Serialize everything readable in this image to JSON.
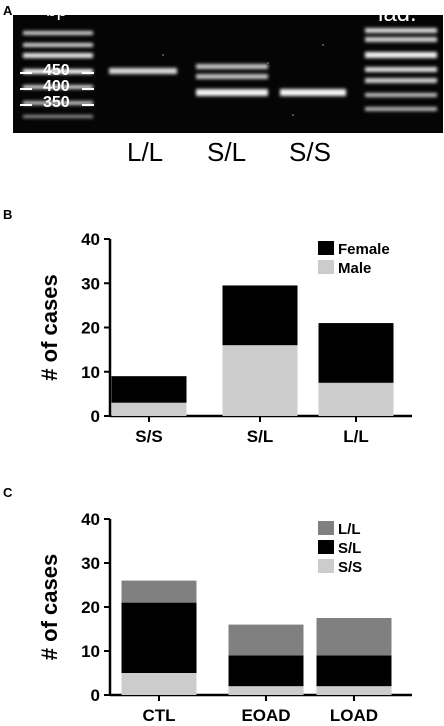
{
  "panel_a": {
    "letter": "A",
    "bp_label": "bp",
    "ladder_label": "lad.",
    "size_markers": [
      "450",
      "400",
      "350"
    ],
    "lane_labels": [
      "L/L",
      "S/L",
      "S/S"
    ]
  },
  "chart_data": [
    {
      "panel_letter": "B",
      "type": "bar",
      "stacked": true,
      "categories": [
        "S/S",
        "S/L",
        "L/L"
      ],
      "series": [
        {
          "name": "Male",
          "color": "#cccccc",
          "values": [
            3,
            16,
            7.5
          ]
        },
        {
          "name": "Female",
          "color": "#000000",
          "values": [
            6,
            13.5,
            13.5
          ]
        }
      ],
      "legend_order": [
        "Female",
        "Male"
      ],
      "legend_position": "top-right",
      "ylabel": "# of cases",
      "xlabel": "",
      "ylim": [
        0,
        40
      ],
      "yticks": [
        0,
        10,
        20,
        30,
        40
      ],
      "grid": false
    },
    {
      "panel_letter": "C",
      "type": "bar",
      "stacked": true,
      "categories": [
        "CTL",
        "EOAD",
        "LOAD"
      ],
      "series": [
        {
          "name": "S/S",
          "color": "#cccccc",
          "values": [
            5,
            2,
            2
          ]
        },
        {
          "name": "S/L",
          "color": "#000000",
          "values": [
            16,
            7,
            7
          ]
        },
        {
          "name": "L/L",
          "color": "#808080",
          "values": [
            5,
            7,
            8.5
          ]
        }
      ],
      "legend_order": [
        "L/L",
        "S/L",
        "S/S"
      ],
      "legend_position": "top-right",
      "ylabel": "# of cases",
      "xlabel": "",
      "ylim": [
        0,
        40
      ],
      "yticks": [
        0,
        10,
        20,
        30,
        40
      ],
      "grid": false
    }
  ]
}
